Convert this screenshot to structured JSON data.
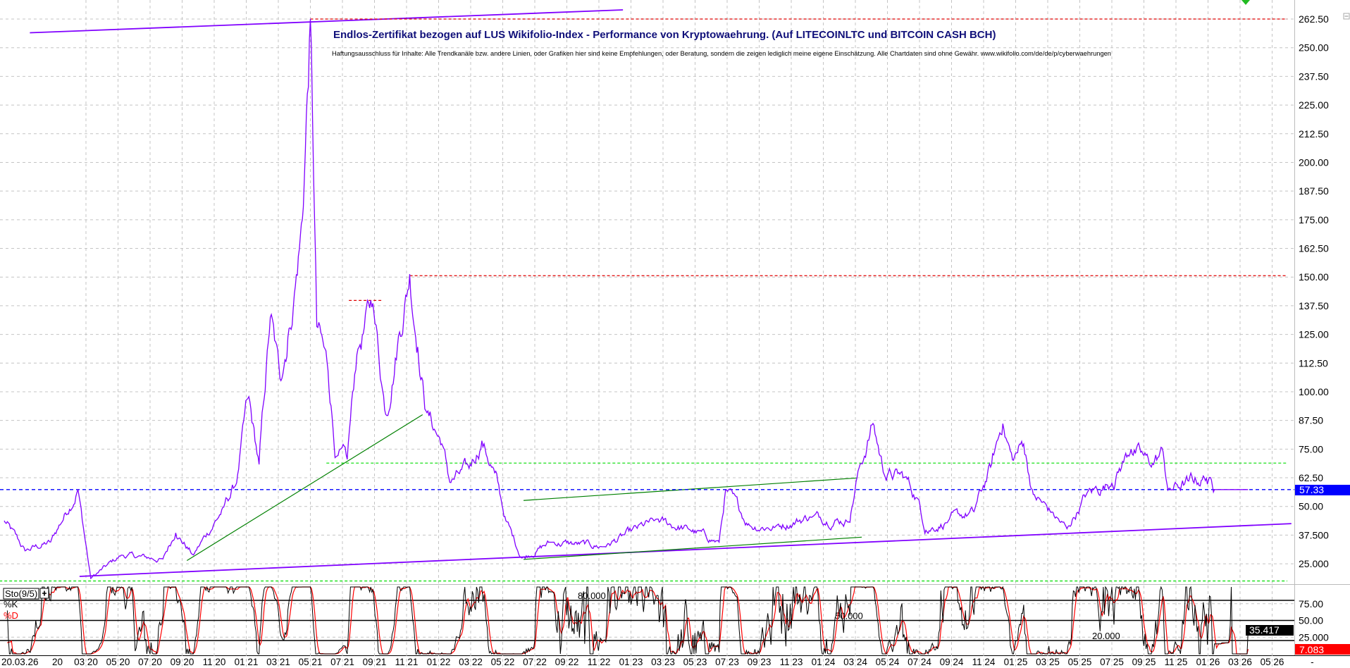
{
  "chart_data": {
    "type": "line",
    "title": "Endlos-Zertifikat bezogen auf LUS Wikifolio-Index - Performance von Kryptowaehrung. (Auf LITECOINLTC und BITCOIN CASH BCH)",
    "disclaimer": "Haftungsausschluss für Inhalte: Alle Trendkanäle bzw. andere Linien, oder Grafiken hier sind keine Empfehlungen, oder Beratung, sondern die zeigen lediglich meine eigene Einschätzung. Alle Chartdaten sind ohne Gewähr. www.wikifolio.com/de/de/p/cyberwaehrungen",
    "x_unit": "months since 03/2020",
    "ylim": [
      25,
      262.5
    ],
    "y_ticks": [
      "262.50",
      "250.00",
      "237.50",
      "225.00",
      "212.50",
      "200.00",
      "187.50",
      "175.00",
      "162.50",
      "150.00",
      "137.50",
      "125.00",
      "112.50",
      "100.00",
      "87.50",
      "75.00",
      "62.50",
      "50.00",
      "37.500",
      "25.000"
    ],
    "y_tick_values": [
      262.5,
      250,
      237.5,
      225,
      212.5,
      200,
      187.5,
      175,
      162.5,
      150,
      137.5,
      125,
      112.5,
      100,
      87.5,
      75,
      62.5,
      50,
      37.5,
      25
    ],
    "x_ticks": [
      "20.03.26",
      "20",
      "03 20",
      "05 20",
      "07 20",
      "09 20",
      "11 20",
      "01 21",
      "03 21",
      "05 21",
      "07 21",
      "09 21",
      "11 21",
      "01 22",
      "03 22",
      "05 22",
      "07 22",
      "09 22",
      "11 22",
      "01 23",
      "03 23",
      "05 23",
      "07 23",
      "09 23",
      "11 23",
      "01 24",
      "03 24",
      "05 24",
      "07 24",
      "09 24",
      "11 24",
      "01 25",
      "03 25",
      "05 25",
      "07 25",
      "09 25",
      "11 25",
      "01 26",
      "03 26",
      "05 26",
      "-"
    ],
    "x_tick_months": [
      -4.8,
      -3.5,
      0,
      2,
      4,
      6,
      8,
      10,
      12,
      14,
      16,
      18,
      20,
      22,
      24,
      26,
      28,
      30,
      32,
      34,
      36,
      38,
      40,
      42,
      44,
      46,
      48,
      50,
      52,
      54,
      56,
      58,
      60,
      62,
      64,
      66,
      68,
      70,
      72,
      74,
      76.4
    ],
    "series": [
      {
        "name": "Index",
        "color": "#8000ff",
        "points": [
          [
            -5.1,
            43.7
          ],
          [
            -3.8,
            30.6
          ],
          [
            -2.2,
            34.4
          ],
          [
            -0.5,
            57.6
          ],
          [
            0.3,
            18.6
          ],
          [
            2.2,
            28.7
          ],
          [
            4.8,
            26.9
          ],
          [
            5.6,
            38.9
          ],
          [
            6.7,
            28.7
          ],
          [
            8.6,
            49.4
          ],
          [
            9.4,
            60.6
          ],
          [
            10.1,
            96.3
          ],
          [
            10.8,
            68
          ],
          [
            11.5,
            132
          ],
          [
            12.1,
            105.7
          ],
          [
            12.6,
            124.5
          ],
          [
            13.0,
            143.2
          ],
          [
            13.5,
            175
          ],
          [
            14.0,
            261.4
          ],
          [
            14.4,
            128
          ],
          [
            15.1,
            109.4
          ],
          [
            15.6,
            71.9
          ],
          [
            16.3,
            70
          ],
          [
            16.9,
            116.9
          ],
          [
            17.9,
            139.4
          ],
          [
            18.7,
            90.7
          ],
          [
            19.5,
            124.5
          ],
          [
            20.2,
            151.4
          ],
          [
            20.7,
            121
          ],
          [
            21.2,
            92.5
          ],
          [
            22.2,
            77.5
          ],
          [
            22.7,
            60.6
          ],
          [
            23.9,
            66.3
          ],
          [
            24.7,
            78.7
          ],
          [
            25.5,
            64.4
          ],
          [
            26.2,
            43.7
          ],
          [
            27.2,
            27.6
          ],
          [
            29.0,
            34.4
          ],
          [
            32.3,
            32.5
          ],
          [
            35.5,
            43.7
          ],
          [
            37.6,
            40
          ],
          [
            39.5,
            34.4
          ],
          [
            39.9,
            56.9
          ],
          [
            41.4,
            41.9
          ],
          [
            43,
            41.1
          ],
          [
            45.2,
            45.6
          ],
          [
            47.6,
            43.7
          ],
          [
            48.1,
            62.5
          ],
          [
            49.1,
            86.2
          ],
          [
            49.8,
            64.4
          ],
          [
            51.1,
            62.5
          ],
          [
            51.9,
            53.1
          ],
          [
            52.4,
            40
          ],
          [
            53.8,
            43.7
          ],
          [
            55.4,
            47.5
          ],
          [
            56.5,
            68.1
          ],
          [
            57.2,
            86.9
          ],
          [
            57.8,
            70
          ],
          [
            58.5,
            77.5
          ],
          [
            59.1,
            55
          ],
          [
            60.2,
            47.5
          ],
          [
            61.2,
            40
          ],
          [
            62.4,
            55
          ],
          [
            64.0,
            60.6
          ],
          [
            65.2,
            75.6
          ],
          [
            66.4,
            68.1
          ],
          [
            67.2,
            73.7
          ],
          [
            67.5,
            56.9
          ],
          [
            68.8,
            60.6
          ],
          [
            69.9,
            62.5
          ],
          [
            70.4,
            57.33
          ],
          [
            72.5,
            57.33
          ]
        ]
      }
    ],
    "last_price": {
      "value": 57.33,
      "label": "57.33",
      "color": "#0000ff"
    },
    "annotations": [
      {
        "kind": "trendline",
        "color": "#8000ff",
        "from": [
          -3.5,
          256.5
        ],
        "to": [
          33.5,
          266.5
        ]
      },
      {
        "kind": "trendline",
        "color": "#8000ff",
        "from": [
          -0.4,
          19.5
        ],
        "to": [
          75.2,
          42.5
        ]
      },
      {
        "kind": "trendline",
        "color": "#008000",
        "from": [
          6.3,
          26.4
        ],
        "to": [
          21.0,
          90
        ]
      },
      {
        "kind": "trendline",
        "color": "#008000",
        "from": [
          27.3,
          52.6
        ],
        "to": [
          48.1,
          62.4
        ]
      },
      {
        "kind": "trendline",
        "color": "#008000",
        "from": [
          27.3,
          26.9
        ],
        "to": [
          48.4,
          36.6
        ]
      },
      {
        "kind": "hline",
        "color": "#e00000",
        "value": 262.5,
        "from": 14.0,
        "to": 76.0
      },
      {
        "kind": "hline",
        "color": "#e00000",
        "value": 150.6,
        "from": 20.2,
        "to": 76.0
      },
      {
        "kind": "hline",
        "color": "#e00000",
        "value": 139.8,
        "from": 16.4,
        "to": 18.5
      },
      {
        "kind": "hline",
        "color": "#00dd00",
        "value": 68.9,
        "from": 15.0,
        "to": 76.0
      },
      {
        "kind": "hline",
        "color": "#00dd00",
        "value": 17.5,
        "from": -5.4,
        "to": 76.0
      }
    ],
    "indicator": {
      "name": "Sto(9/5)",
      "k_label": "%K",
      "d_label": "%D",
      "k_color": "#000000",
      "d_color": "#ff0000",
      "k_period": 9,
      "d_period": 5,
      "levels": [
        80,
        50,
        20
      ],
      "level_labels": [
        "80.000",
        "50.000",
        "20.000"
      ],
      "y_ticks": [
        "75.00",
        "50.00",
        "25.000"
      ],
      "y_tick_values": [
        75,
        50,
        25
      ],
      "k_last": 35.417,
      "k_last_label": "35.417",
      "d_last": 7.083,
      "d_last_label": "7.083"
    }
  }
}
